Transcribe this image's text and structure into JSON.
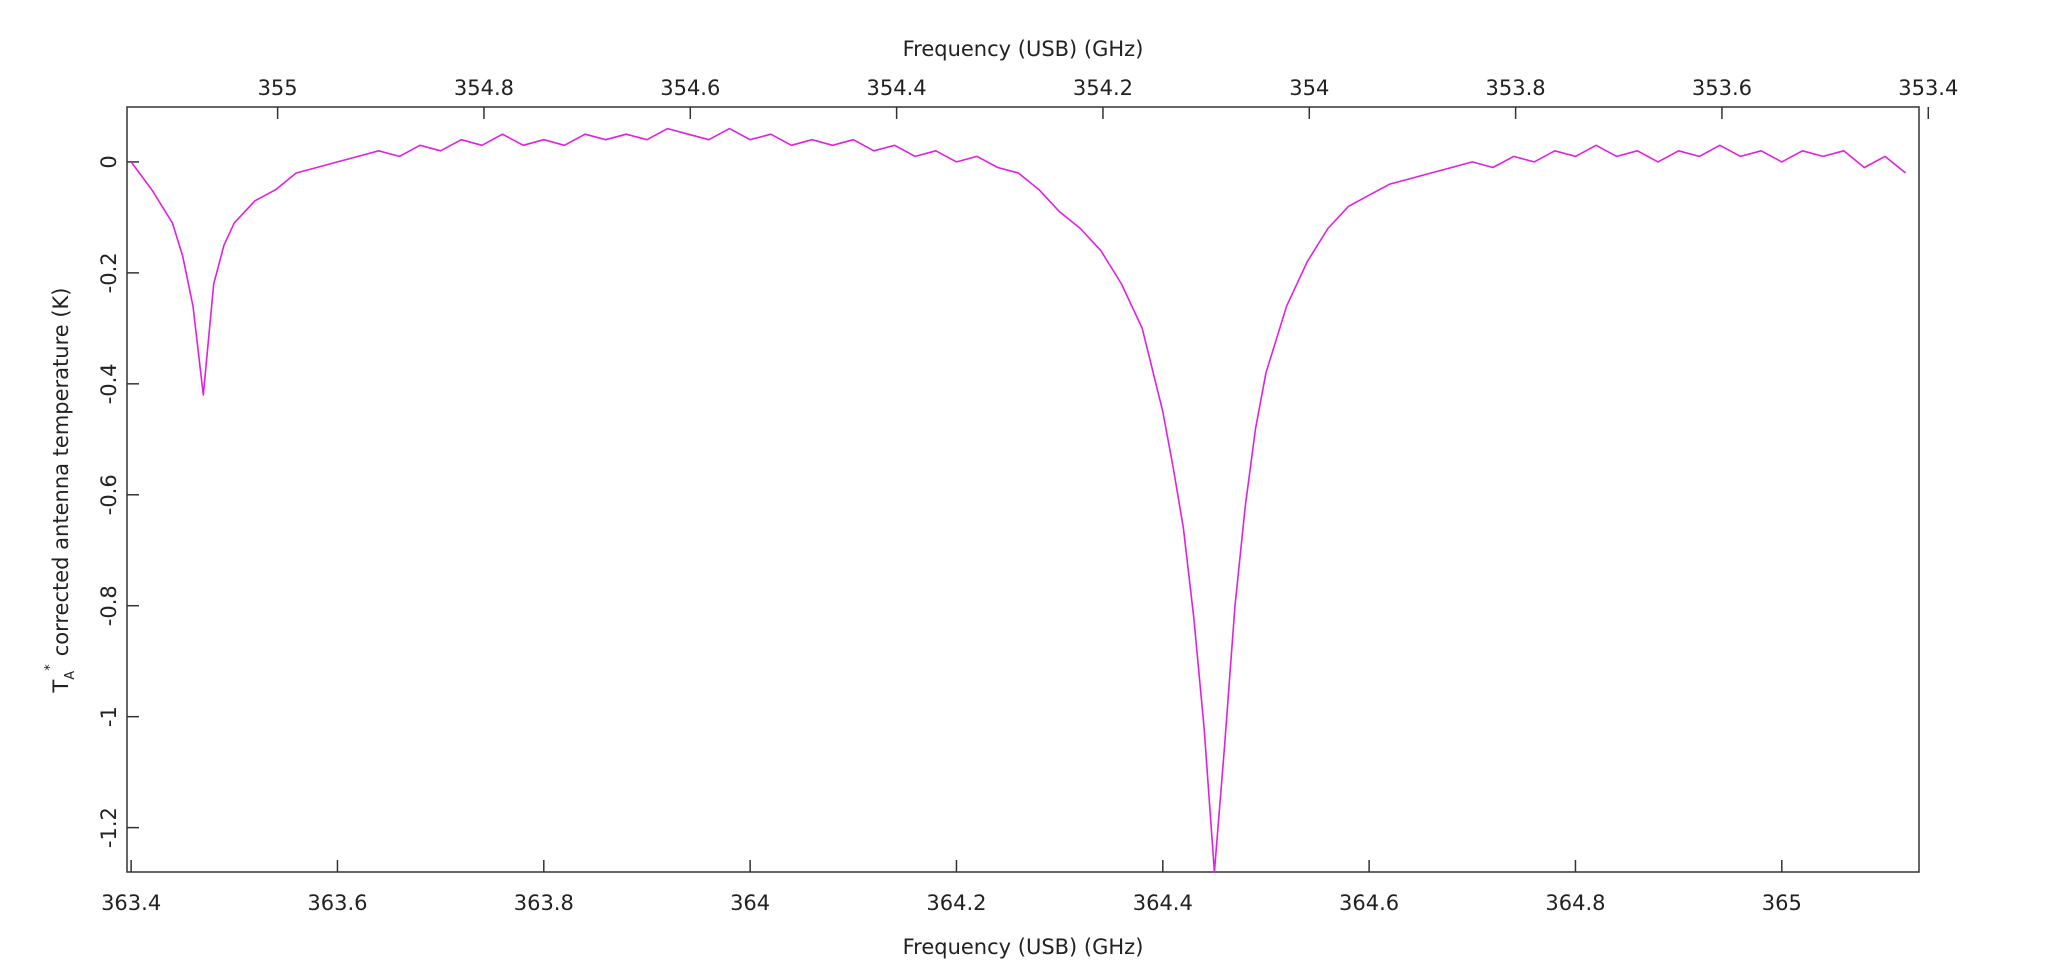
{
  "chart_data": {
    "type": "line",
    "xlabel": "Frequency (USB) (GHz)",
    "x2label": "Frequency (USB) (GHz)",
    "ylabel_symbol": "T",
    "ylabel_sub": "A",
    "ylabel_sup": "*",
    "ylabel": "corrected antenna temperature (K)",
    "color": "#e020e0",
    "xlim": [
      363.396,
      365.133
    ],
    "xticks": [
      363.4,
      363.6,
      363.8,
      364,
      364.2,
      364.4,
      364.6,
      364.8,
      365
    ],
    "x2lim": [
      355.146,
      353.409
    ],
    "x2ticks": [
      355,
      354.8,
      354.6,
      354.4,
      354.2,
      354,
      353.8,
      353.6,
      353.4
    ],
    "ylim": [
      -1.28,
      0.099
    ],
    "yticks": [
      0,
      -0.2,
      -0.4,
      -0.6,
      -0.8,
      -1,
      -1.2
    ],
    "x": [
      363.4,
      363.42,
      363.44,
      363.45,
      363.46,
      363.47,
      363.48,
      363.49,
      363.5,
      363.52,
      363.54,
      363.56,
      363.58,
      363.6,
      363.62,
      363.64,
      363.66,
      363.68,
      363.7,
      363.72,
      363.74,
      363.76,
      363.78,
      363.8,
      363.82,
      363.84,
      363.86,
      363.88,
      363.9,
      363.92,
      363.94,
      363.96,
      363.98,
      364.0,
      364.02,
      364.04,
      364.06,
      364.08,
      364.1,
      364.12,
      364.14,
      364.16,
      364.18,
      364.2,
      364.22,
      364.24,
      364.26,
      364.28,
      364.3,
      364.32,
      364.34,
      364.36,
      364.38,
      364.4,
      364.41,
      364.42,
      364.43,
      364.44,
      364.45,
      364.46,
      364.47,
      364.48,
      364.49,
      364.5,
      364.52,
      364.54,
      364.56,
      364.58,
      364.6,
      364.62,
      364.64,
      364.66,
      364.68,
      364.7,
      364.72,
      364.74,
      364.76,
      364.78,
      364.8,
      364.82,
      364.84,
      364.86,
      364.88,
      364.9,
      364.92,
      364.94,
      364.96,
      364.98,
      365.0,
      365.02,
      365.04,
      365.06,
      365.08,
      365.1,
      365.12
    ],
    "values": [
      0.0,
      -0.05,
      -0.11,
      -0.17,
      -0.26,
      -0.42,
      -0.22,
      -0.15,
      -0.11,
      -0.07,
      -0.05,
      -0.02,
      -0.01,
      0.0,
      0.01,
      0.02,
      0.01,
      0.03,
      0.02,
      0.04,
      0.03,
      0.05,
      0.03,
      0.04,
      0.03,
      0.05,
      0.04,
      0.05,
      0.04,
      0.06,
      0.05,
      0.04,
      0.06,
      0.04,
      0.05,
      0.03,
      0.04,
      0.03,
      0.04,
      0.02,
      0.03,
      0.01,
      0.02,
      0.0,
      0.01,
      -0.01,
      -0.02,
      -0.05,
      -0.09,
      -0.12,
      -0.16,
      -0.22,
      -0.3,
      -0.45,
      -0.55,
      -0.66,
      -0.82,
      -1.02,
      -1.28,
      -1.05,
      -0.8,
      -0.62,
      -0.48,
      -0.38,
      -0.26,
      -0.18,
      -0.12,
      -0.08,
      -0.06,
      -0.04,
      -0.03,
      -0.02,
      -0.01,
      0.0,
      -0.01,
      0.01,
      0.0,
      0.02,
      0.01,
      0.03,
      0.01,
      0.02,
      0.0,
      0.02,
      0.01,
      0.03,
      0.01,
      0.02,
      0.0,
      0.02,
      0.01,
      0.02,
      -0.01,
      0.01,
      -0.02
    ]
  }
}
